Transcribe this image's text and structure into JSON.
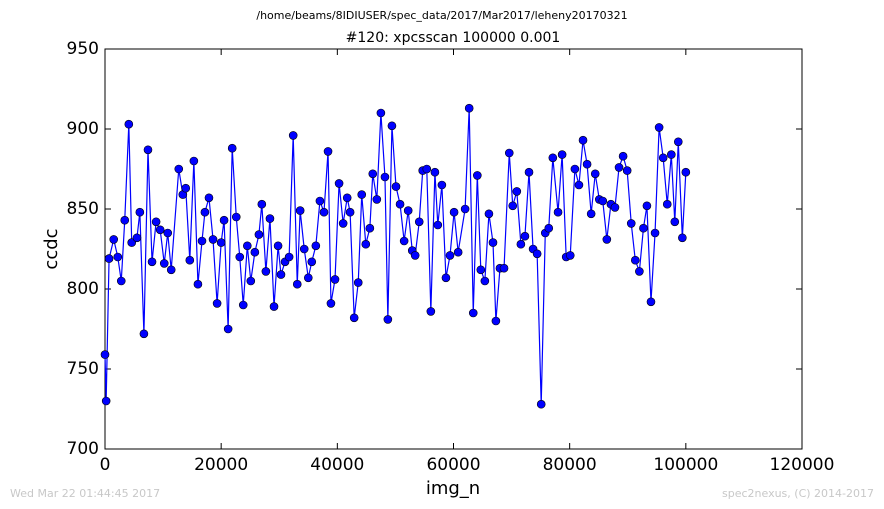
{
  "header": "/home/beams/8IDIUSER/spec_data/2017/Mar2017/leheny20170321",
  "footer_left": "Wed Mar 22 01:44:45 2017",
  "footer_right": "spec2nexus, (C) 2014-2017",
  "chart_data": {
    "type": "line",
    "title": "#120: xpcsscan 100000 0.001",
    "x_label": "img_n",
    "y_label": "ccdc",
    "xlim": [
      0,
      120000
    ],
    "xticks": [
      0,
      20000,
      40000,
      60000,
      80000,
      100000,
      120000
    ],
    "ylim": [
      700,
      950
    ],
    "yticks": [
      700,
      750,
      800,
      850,
      900,
      950
    ],
    "series": [
      {
        "color": "#0000ff",
        "x": [
          0,
          200,
          700,
          1500,
          2200,
          2800,
          3400,
          4100,
          4600,
          5500,
          6000,
          6700,
          7400,
          8100,
          8800,
          9500,
          10200,
          10800,
          11400,
          12700,
          13400,
          13900,
          14600,
          15300,
          16000,
          16700,
          17200,
          17900,
          18600,
          19300,
          20000,
          20500,
          21200,
          21900,
          22600,
          23200,
          23800,
          24500,
          25100,
          25800,
          26500,
          27000,
          27700,
          28400,
          29100,
          29800,
          30300,
          31000,
          31700,
          32400,
          33100,
          33600,
          34300,
          35000,
          35600,
          36300,
          37000,
          37700,
          38400,
          38900,
          39600,
          40300,
          41000,
          41700,
          42200,
          42900,
          43600,
          44200,
          44900,
          45600,
          46100,
          46800,
          47500,
          48200,
          48700,
          49400,
          50100,
          50800,
          51500,
          52200,
          52900,
          53400,
          54100,
          54700,
          55400,
          56100,
          56800,
          57300,
          58000,
          58700,
          59400,
          60100,
          60800,
          62000,
          62700,
          63400,
          64100,
          64700,
          65400,
          66100,
          66800,
          67300,
          68000,
          68700,
          69600,
          70200,
          70900,
          71600,
          72300,
          73000,
          73700,
          74400,
          75100,
          75800,
          76400,
          77100,
          78000,
          78700,
          79400,
          80100,
          80900,
          81600,
          82300,
          83000,
          83700,
          84400,
          85100,
          85700,
          86400,
          87100,
          87800,
          88500,
          89200,
          89900,
          90600,
          91300,
          92000,
          92700,
          93300,
          94000,
          94700,
          95400,
          96100,
          96800,
          97500,
          98100,
          98700,
          99400,
          100000
        ],
        "values": [
          759,
          730,
          819,
          831,
          820,
          805,
          843,
          903,
          829,
          832,
          848,
          772,
          887,
          817,
          842,
          837,
          816,
          835,
          812,
          875,
          859,
          863,
          818,
          880,
          803,
          830,
          848,
          857,
          831,
          791,
          829,
          843,
          775,
          888,
          845,
          820,
          790,
          827,
          805,
          823,
          834,
          853,
          811,
          844,
          789,
          827,
          809,
          817,
          820,
          896,
          803,
          849,
          825,
          807,
          817,
          827,
          855,
          848,
          886,
          791,
          806,
          866,
          841,
          857,
          848,
          782,
          804,
          859,
          828,
          838,
          872,
          856,
          910,
          870,
          781,
          902,
          864,
          853,
          830,
          849,
          824,
          821,
          842,
          874,
          875,
          786,
          873,
          840,
          865,
          807,
          821,
          848,
          823,
          850,
          913,
          785,
          871,
          812,
          805,
          847,
          829,
          780,
          813,
          813,
          885,
          852,
          861,
          828,
          833,
          873,
          825,
          822,
          728,
          835,
          838,
          882,
          848,
          884,
          820,
          821,
          875,
          865,
          893,
          878,
          847,
          872,
          856,
          855,
          831,
          853,
          851,
          876,
          883,
          874,
          841,
          818,
          811,
          838,
          852,
          792,
          835,
          901,
          882,
          853,
          884,
          842,
          892,
          832,
          873
        ]
      }
    ]
  }
}
